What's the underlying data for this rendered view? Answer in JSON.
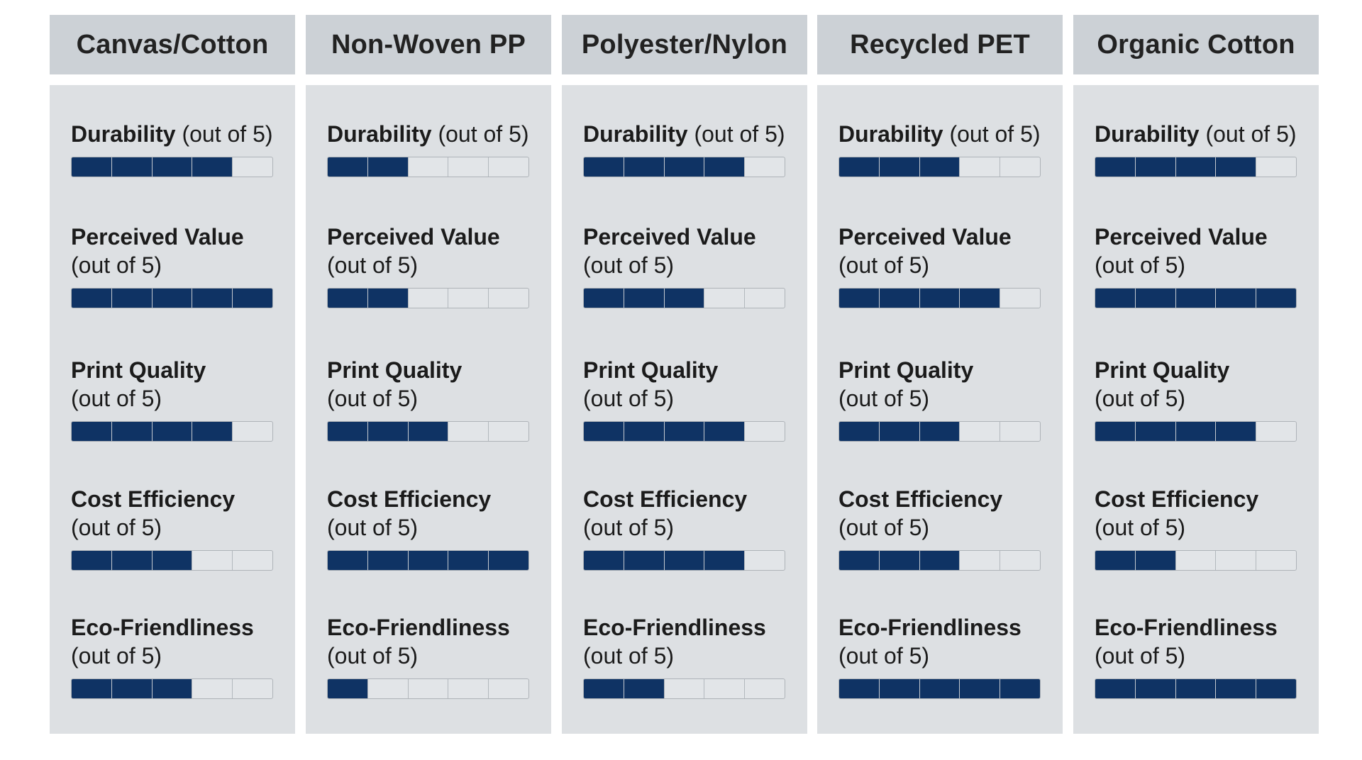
{
  "scale_max": 5,
  "colors": {
    "filled": "#0f3364",
    "empty": "#e2e5e8",
    "header_bg": "#ccd1d6",
    "panel_bg": "#dde0e3"
  },
  "suffix": "(out of 5)",
  "chart_data": {
    "type": "table",
    "title": "",
    "categories": [
      "Durability",
      "Perceived Value",
      "Print Quality",
      "Cost Efficiency",
      "Eco-Friendliness"
    ],
    "series": [
      {
        "name": "Canvas/Cotton",
        "values": [
          4,
          5,
          4,
          3,
          3
        ]
      },
      {
        "name": "Non-Woven PP",
        "values": [
          2,
          2,
          3,
          5,
          1
        ]
      },
      {
        "name": "Polyester/Nylon",
        "values": [
          4,
          3,
          4,
          4,
          2
        ]
      },
      {
        "name": "Recycled PET",
        "values": [
          3,
          4,
          3,
          3,
          5
        ]
      },
      {
        "name": "Organic Cotton",
        "values": [
          4,
          5,
          4,
          2,
          5
        ]
      }
    ],
    "ylim": [
      0,
      5
    ]
  }
}
